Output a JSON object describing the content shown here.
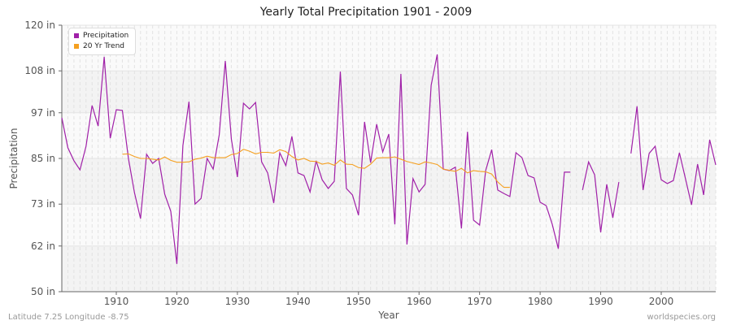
{
  "chart_data": {
    "type": "line",
    "title": "Yearly Total Precipitation 1901 - 2009",
    "xlabel": "Year",
    "ylabel": "Precipitation",
    "xlim": [
      1901,
      2009
    ],
    "ylim": [
      50,
      120
    ],
    "x_ticks": [
      1910,
      1920,
      1930,
      1940,
      1950,
      1960,
      1970,
      1980,
      1990,
      2000
    ],
    "y_ticks": [
      50,
      62,
      73,
      85,
      97,
      108,
      120
    ],
    "y_tick_labels": [
      "50 in",
      "62 in",
      "73 in",
      "85 in",
      "97 in",
      "108 in",
      "120 in"
    ],
    "grid": true,
    "legend_position": "top-left",
    "series": [
      {
        "name": "Precipitation",
        "color": "#a020a8",
        "start_year": 1901,
        "values": [
          95.7,
          87.8,
          84.4,
          82.0,
          88.2,
          98.9,
          93.5,
          111.7,
          90.3,
          97.8,
          97.6,
          85.0,
          76.0,
          69.2,
          86.1,
          83.7,
          85.0,
          75.6,
          71.1,
          57.3,
          88.4,
          99.9,
          73.0,
          74.5,
          85.0,
          82.2,
          91.2,
          110.6,
          90.1,
          80.1,
          99.5,
          98.0,
          99.7,
          84.1,
          81.2,
          73.3,
          86.5,
          83.1,
          90.8,
          81.2,
          80.5,
          76.2,
          84.4,
          79.4,
          77.1,
          79.0,
          107.8,
          77.1,
          75.4,
          70.1,
          94.6,
          83.9,
          94.0,
          86.7,
          91.4,
          67.7,
          107.2,
          62.4,
          79.7,
          76.2,
          78.2,
          104.2,
          112.3,
          82.2,
          81.8,
          82.7,
          66.6,
          92.0,
          68.8,
          67.5,
          81.8,
          87.3,
          76.7,
          75.8,
          75.0,
          86.5,
          85.2,
          80.5,
          79.9,
          73.5,
          72.6,
          67.7,
          61.3,
          81.4,
          81.4,
          null,
          76.7,
          84.1,
          80.7,
          65.6,
          78.2,
          69.4,
          78.8,
          null,
          86.3,
          98.7,
          76.7,
          86.3,
          88.2,
          79.4,
          78.4,
          79.2,
          86.5,
          79.7,
          72.8,
          83.5,
          75.4,
          89.9,
          83.3
        ]
      },
      {
        "name": "20 Yr Trend",
        "color": "#f5a020",
        "start_year": 1911,
        "values": [
          86.1,
          86.2,
          85.5,
          85.0,
          85.0,
          84.8,
          84.6,
          85.4,
          84.5,
          84.0,
          84.0,
          84.1,
          84.8,
          85.1,
          85.6,
          85.2,
          85.2,
          85.2,
          86.0,
          86.3,
          87.4,
          86.9,
          86.2,
          86.6,
          86.6,
          86.4,
          87.3,
          86.8,
          85.5,
          84.6,
          85.0,
          84.3,
          84.2,
          83.5,
          83.8,
          83.2,
          84.6,
          83.5,
          83.4,
          82.6,
          82.4,
          83.5,
          85.1,
          85.2,
          85.2,
          85.4,
          84.8,
          84.2,
          83.8,
          83.4,
          84.1,
          83.8,
          83.4,
          82.2,
          81.9,
          81.6,
          82.4,
          81.2,
          81.8,
          81.6,
          81.5,
          80.9,
          78.8,
          77.4,
          77.4
        ]
      }
    ]
  },
  "footer": {
    "left": "Latitude 7.25 Longitude -8.75",
    "right": "worldspecies.org"
  }
}
